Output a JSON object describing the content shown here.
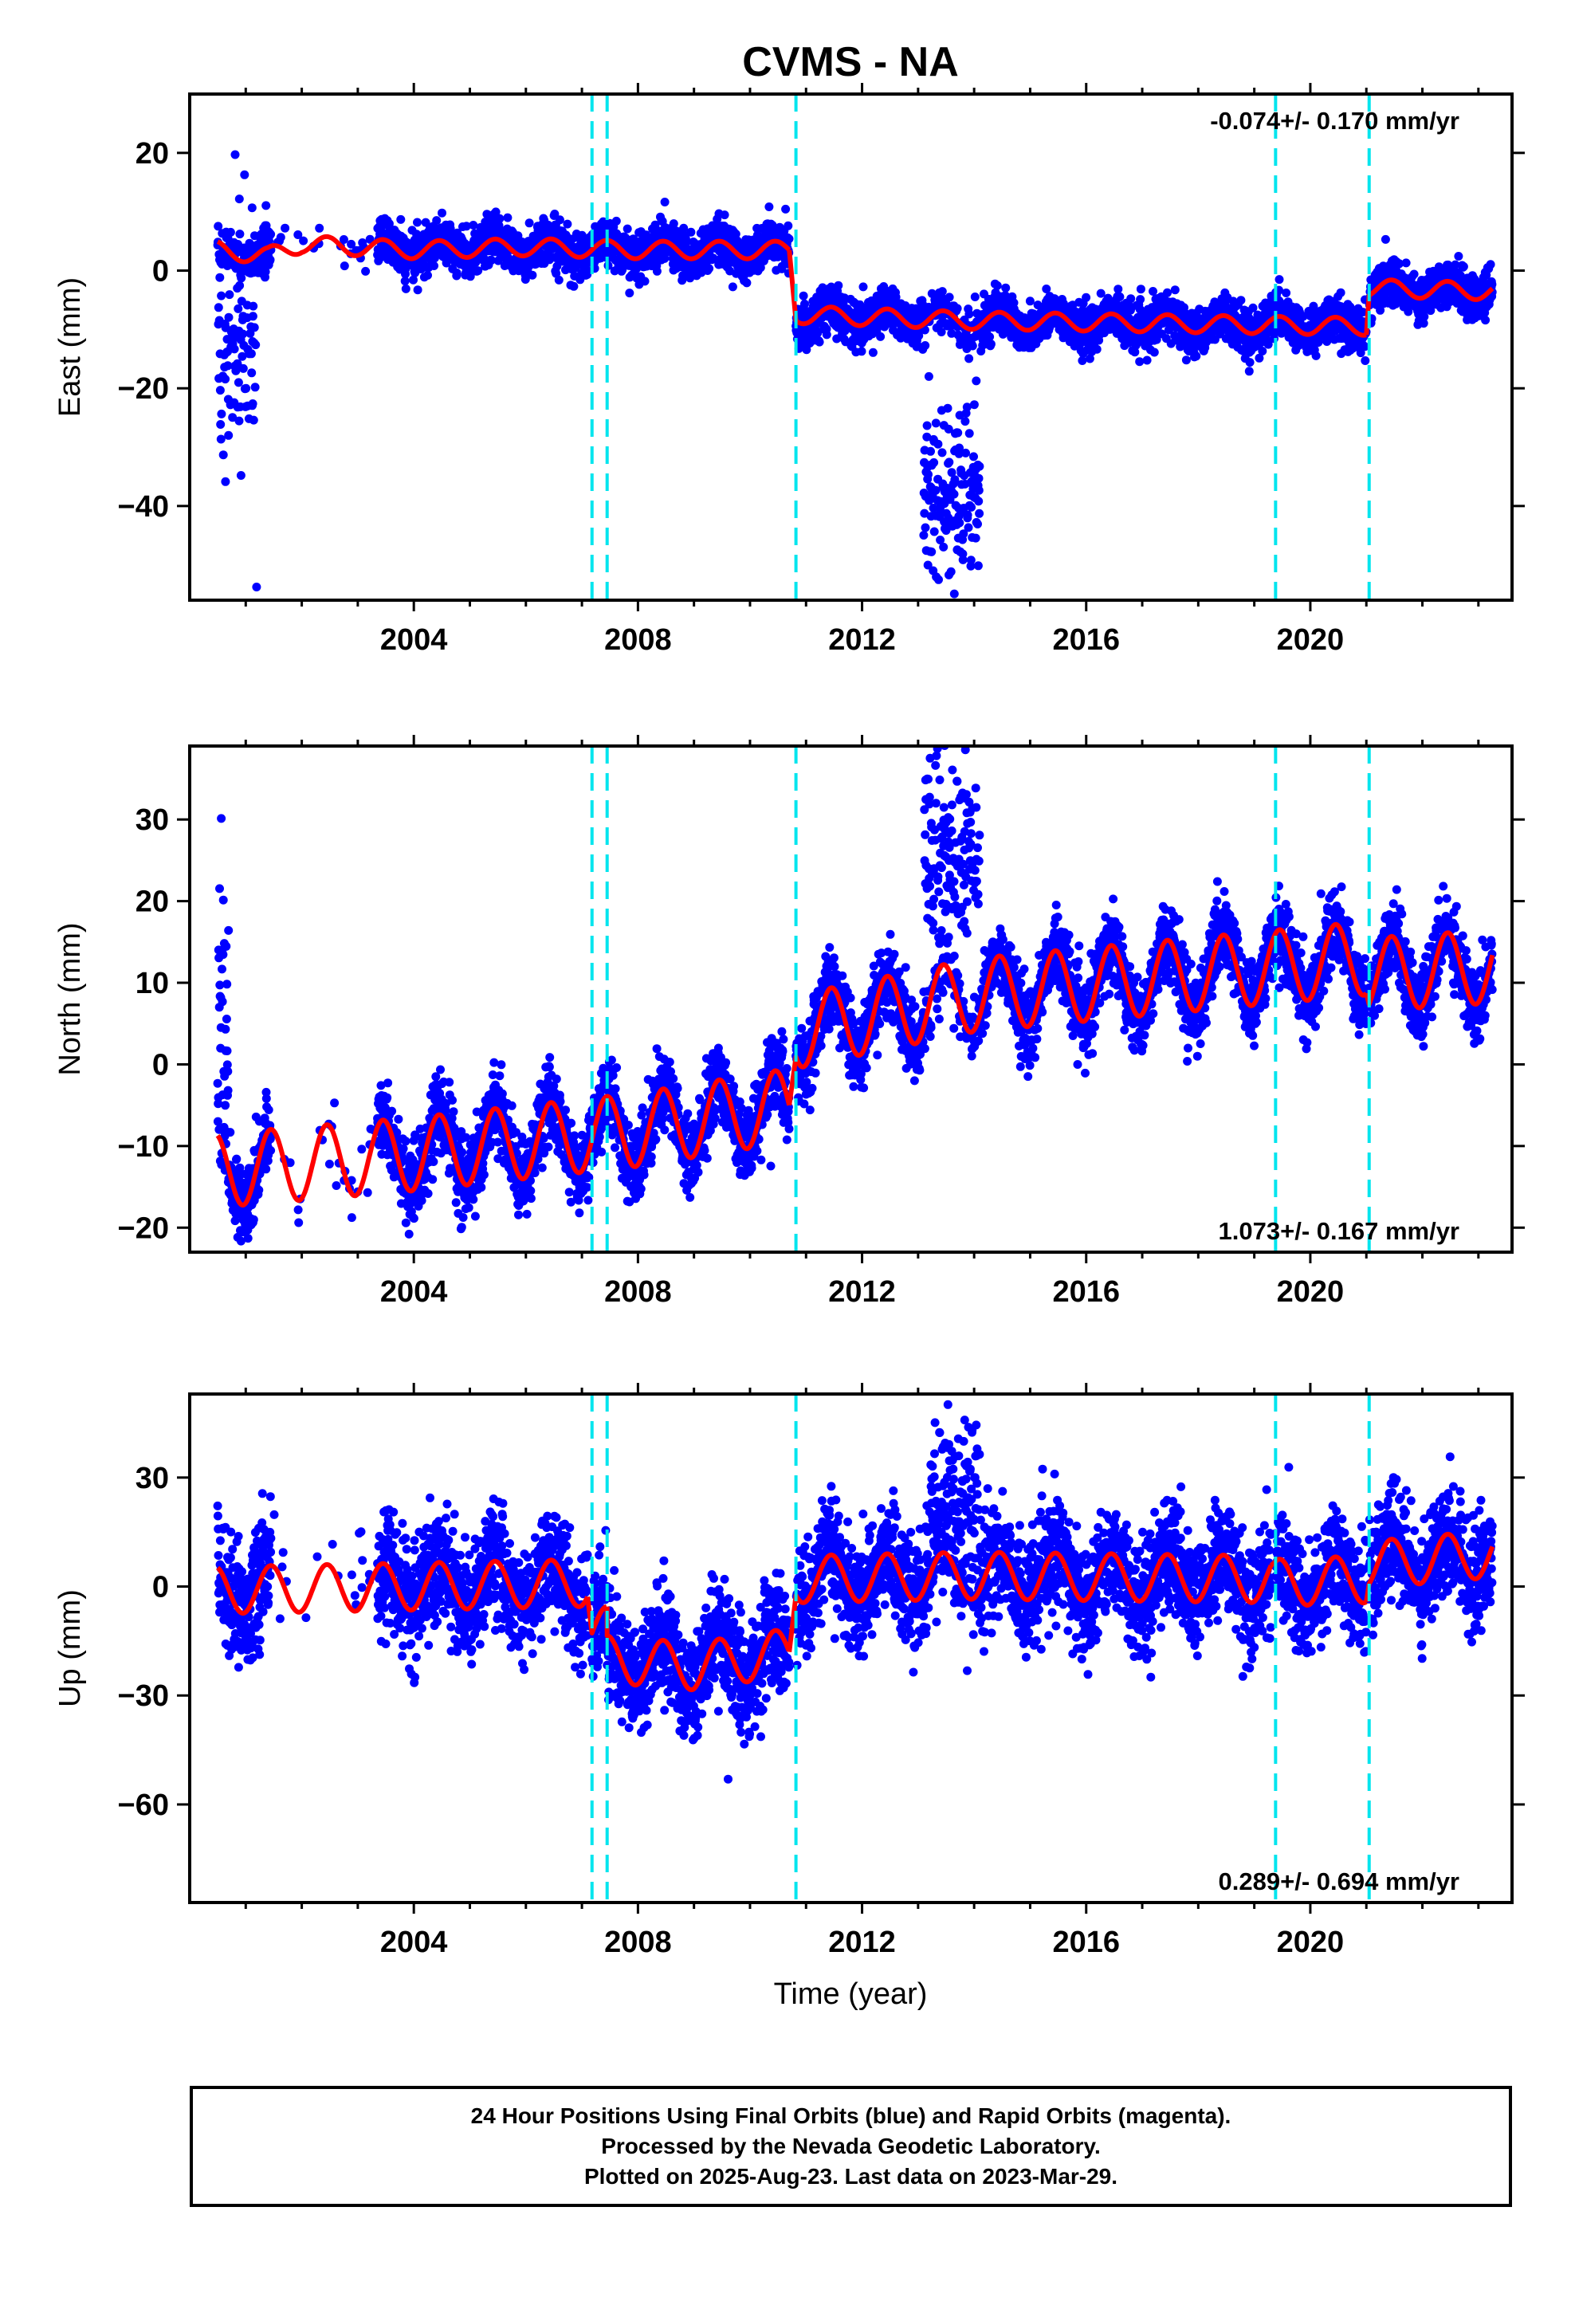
{
  "chart_data": {
    "title": "CVMS - NA",
    "type": "scatter",
    "x_label": "Time (year)",
    "x_ticks": [
      "2004",
      "2008",
      "2012",
      "2016",
      "2020"
    ],
    "x_tick_values": [
      2004,
      2008,
      2012,
      2016,
      2020
    ],
    "x_range": [
      2000.0,
      2023.6
    ],
    "offset_lines": [
      2007.18,
      2007.45,
      2010.82,
      2019.38,
      2021.05
    ],
    "colors": {
      "data": "#0000ff",
      "model": "#ff0000",
      "offset": "#00e5ee"
    },
    "panels": [
      {
        "name": "east",
        "y_label": "East (mm)",
        "y_ticks": [
          "20",
          "0",
          "−20",
          "−40"
        ],
        "y_tick_values": [
          20,
          0,
          -20,
          -40
        ],
        "y_range": [
          -56,
          30
        ],
        "rate_label": "-0.074+/- 0.170 mm/yr",
        "rate_position": "top-right",
        "model_segments": [
          {
            "x": [
              2000.5,
              2001.4,
              2002.0,
              2004.0,
              2006.0,
              2008.0,
              2010.7
            ],
            "base": [
              3.5,
              2.5,
              4.5,
              3.5,
              4.0,
              3.5,
              3.5
            ]
          },
          {
            "x": [
              2010.82,
              2014.0,
              2021.0
            ],
            "base": [
              -7.5,
              -8.5,
              -9.5
            ]
          },
          {
            "x": [
              2021.05,
              2023.25
            ],
            "base": [
              -3.0,
              -3.5
            ]
          }
        ],
        "seasonal_amplitude": 1.5,
        "noise": 1.9,
        "gaps": [
          [
            2001.45,
            2003.35
          ]
        ],
        "anomalies": [
          {
            "x0": 2013.1,
            "x1": 2014.1,
            "y_center": -38,
            "spread": 7
          },
          {
            "x0": 2000.45,
            "x1": 2001.2,
            "y_center": -12,
            "spread": 12
          }
        ]
      },
      {
        "name": "north",
        "y_label": "North (mm)",
        "y_ticks": [
          "30",
          "20",
          "10",
          "0",
          "−10",
          "−20"
        ],
        "y_tick_values": [
          30,
          20,
          10,
          0,
          -10,
          -20
        ],
        "y_range": [
          -23,
          39
        ],
        "rate_label": "1.073+/- 0.167 mm/yr",
        "rate_position": "bottom-right",
        "model_segments": [
          {
            "x": [
              2000.5,
              2004.0,
              2008.0,
              2010.7
            ],
            "base": [
              -13,
              -11,
              -8,
              -5
            ]
          },
          {
            "x": [
              2010.82,
              2014.0,
              2021.0
            ],
            "base": [
              4,
              8.5,
              13
            ]
          },
          {
            "x": [
              2021.05,
              2023.25
            ],
            "base": [
              11,
              12
            ]
          }
        ],
        "seasonal_amplitude": 4.5,
        "noise": 2.3,
        "gaps": [
          [
            2001.45,
            2003.35
          ]
        ],
        "anomalies": [
          {
            "x0": 2013.1,
            "x1": 2014.1,
            "y_center": 26,
            "spread": 6
          },
          {
            "x0": 2000.45,
            "x1": 2000.7,
            "y_center": 6,
            "spread": 9
          }
        ]
      },
      {
        "name": "up",
        "y_label": "Up (mm)",
        "y_ticks": [
          "30",
          "0",
          "−30",
          "−60"
        ],
        "y_tick_values": [
          30,
          0,
          -30,
          -60
        ],
        "y_range": [
          -87,
          53
        ],
        "rate_label": "0.289+/- 0.694 mm/yr",
        "rate_position": "bottom-right",
        "model_segments": [
          {
            "x": [
              2000.5,
              2004.0,
              2007.1
            ],
            "base": [
              -1,
              0,
              1
            ]
          },
          {
            "x": [
              2007.18,
              2007.45
            ],
            "base": [
              -12,
              -12
            ]
          },
          {
            "x": [
              2007.45,
              2009.0,
              2010.7
            ],
            "base": [
              -20,
              -22,
              -18
            ]
          },
          {
            "x": [
              2010.82,
              2014.0,
              2019.3
            ],
            "base": [
              2,
              3,
              2
            ]
          },
          {
            "x": [
              2019.38,
              2021.0
            ],
            "base": [
              1,
              2
            ]
          },
          {
            "x": [
              2021.05,
              2023.25
            ],
            "base": [
              6,
              9
            ]
          }
        ],
        "seasonal_amplitude": 6.5,
        "noise": 7.5,
        "gaps": [
          [
            2001.45,
            2003.35
          ]
        ],
        "anomalies": [
          {
            "x0": 2013.2,
            "x1": 2014.1,
            "y_center": 25,
            "spread": 12
          }
        ]
      }
    ]
  },
  "caption": {
    "line1": "24 Hour Positions Using Final Orbits (blue) and Rapid Orbits (magenta).",
    "line2": "Processed by the Nevada Geodetic Laboratory.",
    "line3": "Plotted on 2025-Aug-23. Last data on 2023-Mar-29."
  }
}
